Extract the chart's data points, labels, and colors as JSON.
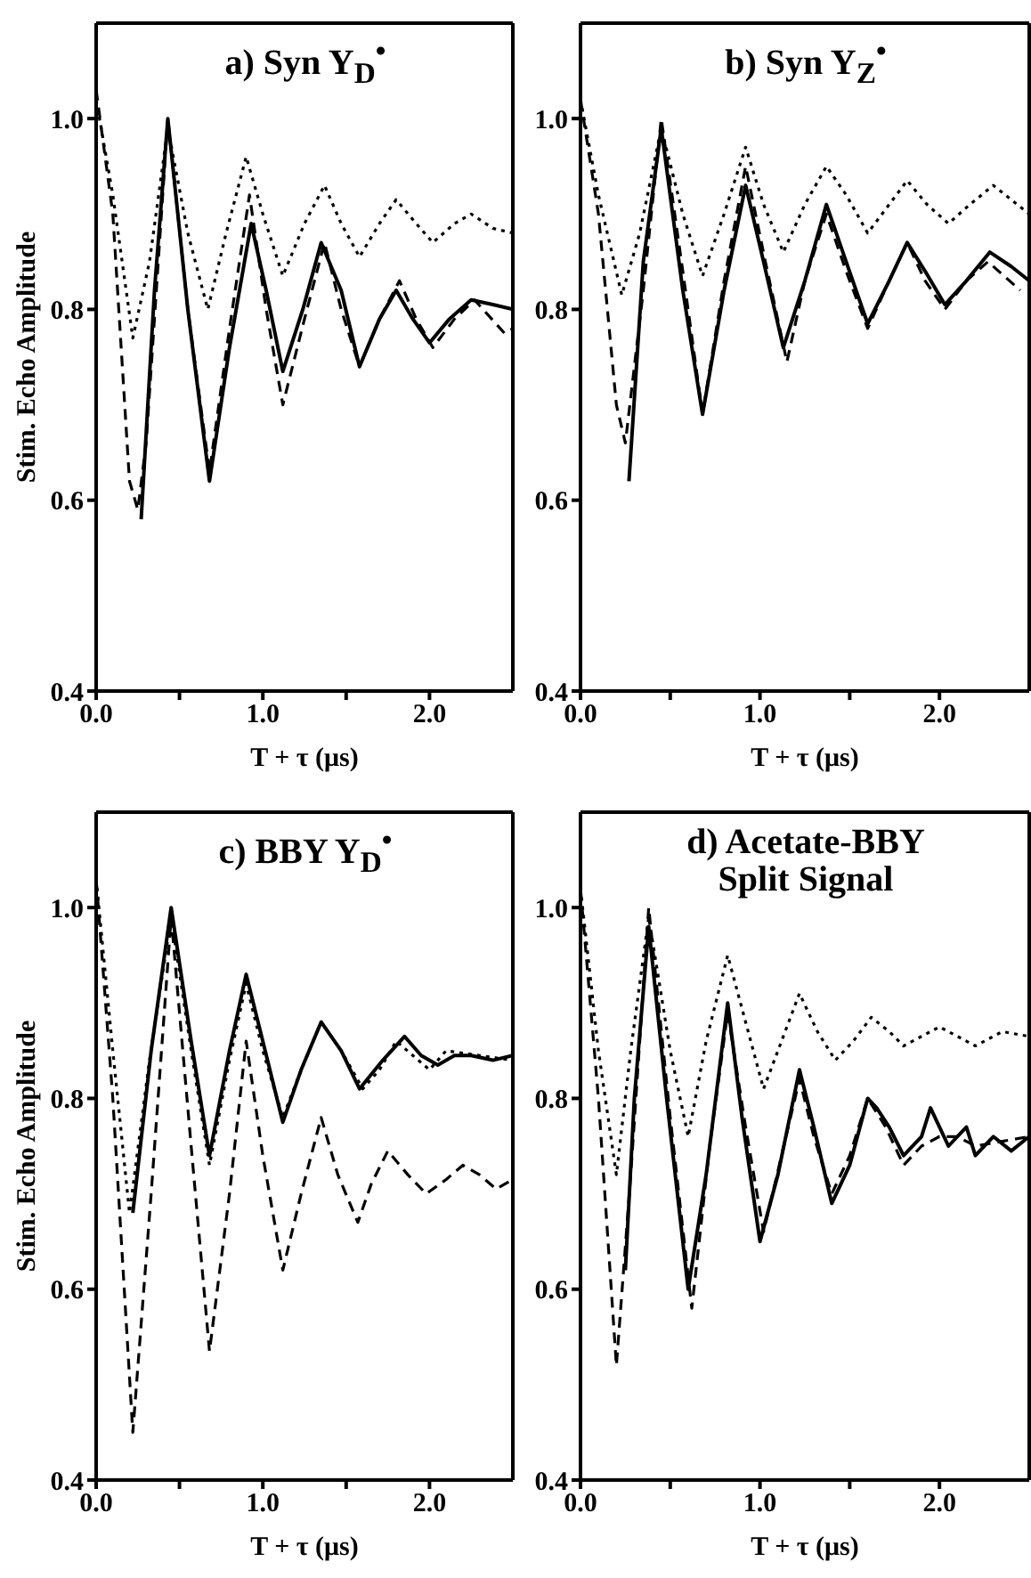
{
  "chart_data": [
    {
      "type": "line",
      "title": "a) Syn  Y$_{D}$$^{•}$",
      "xlabel": "T + τ (μs)",
      "ylabel": "Stim. Echo Amplitude",
      "xlim": [
        0,
        2.5
      ],
      "ylim": [
        0.4,
        1.1
      ],
      "xticks": [
        {
          "value": 0,
          "label": "0.0"
        },
        {
          "value": 0.5,
          "label": null
        },
        {
          "value": 1,
          "label": "1.0"
        },
        {
          "value": 1.5,
          "label": null
        },
        {
          "value": 2,
          "label": "2.0"
        }
      ],
      "yticks": [
        {
          "value": 0.4,
          "label": "0.4"
        },
        {
          "value": 0.6,
          "label": "0.6"
        },
        {
          "value": 0.8,
          "label": "0.8"
        },
        {
          "value": 1,
          "label": "1.0"
        }
      ],
      "grid": false,
      "legend": false,
      "marker": "none",
      "series": [
        {
          "color": "#000000",
          "line_style": "solid",
          "x": [
            0.27,
            0.35,
            0.43,
            0.55,
            0.68,
            0.8,
            0.93,
            1.02,
            1.12,
            1.24,
            1.35,
            1.47,
            1.58,
            1.7,
            1.8,
            1.9,
            2.0,
            2.12,
            2.25,
            2.38,
            2.5
          ],
          "values": [
            0.58,
            0.82,
            1.0,
            0.8,
            0.62,
            0.76,
            0.89,
            0.82,
            0.735,
            0.8,
            0.87,
            0.82,
            0.74,
            0.79,
            0.82,
            0.79,
            0.765,
            0.79,
            0.81,
            0.805,
            0.8
          ]
        },
        {
          "color": "#000000",
          "line_style": "dashed",
          "x": [
            0,
            0.1,
            0.2,
            0.25,
            0.3,
            0.43,
            0.55,
            0.68,
            0.8,
            0.92,
            1.02,
            1.12,
            1.25,
            1.37,
            1.47,
            1.58,
            1.7,
            1.82,
            1.92,
            2.02,
            2.15,
            2.27,
            2.45,
            2.5
          ],
          "values": [
            1.03,
            0.9,
            0.62,
            0.59,
            0.66,
            1.0,
            0.8,
            0.63,
            0.78,
            0.92,
            0.8,
            0.7,
            0.79,
            0.87,
            0.8,
            0.74,
            0.79,
            0.83,
            0.79,
            0.76,
            0.79,
            0.81,
            0.775,
            0.78
          ]
        },
        {
          "color": "#000000",
          "line_style": "dotted",
          "x": [
            0,
            0.1,
            0.22,
            0.32,
            0.43,
            0.55,
            0.67,
            0.78,
            0.9,
            1.0,
            1.12,
            1.25,
            1.37,
            1.47,
            1.58,
            1.7,
            1.8,
            1.92,
            2.02,
            2.15,
            2.25,
            2.38,
            2.5
          ],
          "values": [
            1.02,
            0.92,
            0.77,
            0.85,
            0.99,
            0.88,
            0.8,
            0.88,
            0.96,
            0.9,
            0.835,
            0.89,
            0.93,
            0.89,
            0.855,
            0.89,
            0.915,
            0.89,
            0.87,
            0.89,
            0.9,
            0.885,
            0.88
          ]
        }
      ]
    },
    {
      "type": "line",
      "title": "b) Syn  Y$_{Z}$$^{•}$",
      "xlabel": "T + τ (μs)",
      "xlim": [
        0,
        2.5
      ],
      "ylim": [
        0.4,
        1.1
      ],
      "xticks": [
        {
          "value": 0,
          "label": "0.0"
        },
        {
          "value": 0.5,
          "label": null
        },
        {
          "value": 1,
          "label": "1.0"
        },
        {
          "value": 1.5,
          "label": null
        },
        {
          "value": 2,
          "label": "2.0"
        }
      ],
      "yticks": [
        {
          "value": 0.4,
          "label": "0.4"
        },
        {
          "value": 0.6,
          "label": "0.6"
        },
        {
          "value": 0.8,
          "label": "0.8"
        },
        {
          "value": 1,
          "label": "1.0"
        }
      ],
      "grid": false,
      "legend": false,
      "marker": "none",
      "series": [
        {
          "color": "#000000",
          "line_style": "solid",
          "x": [
            0.27,
            0.35,
            0.45,
            0.57,
            0.68,
            0.8,
            0.92,
            1.02,
            1.13,
            1.25,
            1.37,
            1.48,
            1.6,
            1.72,
            1.82,
            1.92,
            2.03,
            2.15,
            2.28,
            2.4,
            2.5
          ],
          "values": [
            0.62,
            0.85,
            0.99,
            0.82,
            0.69,
            0.82,
            0.93,
            0.85,
            0.76,
            0.83,
            0.91,
            0.85,
            0.785,
            0.83,
            0.87,
            0.84,
            0.805,
            0.83,
            0.86,
            0.845,
            0.83
          ]
        },
        {
          "color": "#000000",
          "line_style": "dashed",
          "x": [
            0,
            0.1,
            0.2,
            0.25,
            0.35,
            0.45,
            0.57,
            0.68,
            0.8,
            0.92,
            1.03,
            1.15,
            1.25,
            1.37,
            1.48,
            1.6,
            1.72,
            1.82,
            1.92,
            2.03,
            2.15,
            2.27,
            2.45
          ],
          "values": [
            1.02,
            0.9,
            0.7,
            0.66,
            0.82,
            1.0,
            0.84,
            0.69,
            0.83,
            0.95,
            0.85,
            0.745,
            0.83,
            0.9,
            0.84,
            0.78,
            0.83,
            0.87,
            0.83,
            0.8,
            0.83,
            0.85,
            0.82
          ]
        },
        {
          "color": "#000000",
          "line_style": "dotted",
          "x": [
            0,
            0.1,
            0.23,
            0.33,
            0.45,
            0.57,
            0.68,
            0.8,
            0.92,
            1.02,
            1.13,
            1.25,
            1.37,
            1.48,
            1.6,
            1.72,
            1.82,
            1.93,
            2.05,
            2.17,
            2.3,
            2.4,
            2.5
          ],
          "values": [
            1.02,
            0.92,
            0.815,
            0.88,
            0.99,
            0.9,
            0.835,
            0.9,
            0.97,
            0.91,
            0.86,
            0.91,
            0.95,
            0.92,
            0.88,
            0.91,
            0.935,
            0.91,
            0.89,
            0.91,
            0.93,
            0.915,
            0.9
          ]
        }
      ]
    },
    {
      "type": "line",
      "title": "c)  BBY  Y$_{D}$$^{•}$",
      "xlabel": "T + τ (μs)",
      "ylabel": "Stim. Echo Amplitude",
      "xlim": [
        0,
        2.5
      ],
      "ylim": [
        0.4,
        1.1
      ],
      "xticks": [
        {
          "value": 0,
          "label": "0.0"
        },
        {
          "value": 0.5,
          "label": null
        },
        {
          "value": 1,
          "label": "1.0"
        },
        {
          "value": 1.5,
          "label": null
        },
        {
          "value": 2,
          "label": "2.0"
        }
      ],
      "yticks": [
        {
          "value": 0.4,
          "label": "0.4"
        },
        {
          "value": 0.6,
          "label": "0.6"
        },
        {
          "value": 0.8,
          "label": "0.8"
        },
        {
          "value": 1,
          "label": "1.0"
        }
      ],
      "grid": false,
      "legend": false,
      "marker": "none",
      "series": [
        {
          "color": "#000000",
          "line_style": "solid",
          "x": [
            0.22,
            0.33,
            0.45,
            0.57,
            0.68,
            0.8,
            0.9,
            1.0,
            1.12,
            1.23,
            1.35,
            1.47,
            1.58,
            1.72,
            1.85,
            1.95,
            2.05,
            2.15,
            2.25,
            2.38,
            2.5
          ],
          "values": [
            0.68,
            0.85,
            1.0,
            0.86,
            0.74,
            0.85,
            0.93,
            0.86,
            0.775,
            0.83,
            0.88,
            0.85,
            0.81,
            0.84,
            0.865,
            0.845,
            0.835,
            0.845,
            0.845,
            0.84,
            0.845
          ]
        },
        {
          "color": "#000000",
          "line_style": "dashed",
          "x": [
            0,
            0.1,
            0.22,
            0.33,
            0.45,
            0.57,
            0.68,
            0.8,
            0.9,
            1.0,
            1.12,
            1.23,
            1.35,
            1.45,
            1.57,
            1.65,
            1.75,
            1.87,
            1.98,
            2.1,
            2.2,
            2.3,
            2.4,
            2.5
          ],
          "values": [
            1.03,
            0.8,
            0.45,
            0.7,
            0.99,
            0.75,
            0.535,
            0.7,
            0.86,
            0.74,
            0.62,
            0.7,
            0.78,
            0.72,
            0.67,
            0.71,
            0.745,
            0.72,
            0.7,
            0.715,
            0.73,
            0.72,
            0.705,
            0.715
          ]
        },
        {
          "color": "#000000",
          "line_style": "dotted",
          "x": [
            0,
            0.1,
            0.2,
            0.32,
            0.45,
            0.57,
            0.68,
            0.8,
            0.9,
            1.0,
            1.12,
            1.23,
            1.35,
            1.47,
            1.6,
            1.7,
            1.8,
            1.9,
            2.0,
            2.1,
            2.3,
            2.5
          ],
          "values": [
            1.03,
            0.85,
            0.68,
            0.84,
            0.99,
            0.85,
            0.73,
            0.84,
            0.92,
            0.85,
            0.78,
            0.83,
            0.88,
            0.85,
            0.81,
            0.83,
            0.86,
            0.845,
            0.83,
            0.85,
            0.845,
            0.84
          ]
        }
      ]
    },
    {
      "type": "line",
      "title": "d)  Acetate-BBY\nSplit Signal",
      "xlabel": "T + τ (μs)",
      "xlim": [
        0,
        2.5
      ],
      "ylim": [
        0.4,
        1.1
      ],
      "xticks": [
        {
          "value": 0,
          "label": "0.0"
        },
        {
          "value": 0.5,
          "label": null
        },
        {
          "value": 1,
          "label": "1.0"
        },
        {
          "value": 1.5,
          "label": null
        },
        {
          "value": 2,
          "label": "2.0"
        }
      ],
      "yticks": [
        {
          "value": 0.4,
          "label": "0.4"
        },
        {
          "value": 0.6,
          "label": "0.6"
        },
        {
          "value": 0.8,
          "label": "0.8"
        },
        {
          "value": 1,
          "label": "1.0"
        }
      ],
      "grid": false,
      "legend": false,
      "marker": "none",
      "series": [
        {
          "color": "#000000",
          "line_style": "solid",
          "x": [
            0.25,
            0.3,
            0.38,
            0.48,
            0.6,
            0.7,
            0.82,
            0.9,
            1.0,
            1.1,
            1.22,
            1.3,
            1.4,
            1.5,
            1.6,
            1.65,
            1.72,
            1.8,
            1.9,
            1.95,
            2.05,
            2.15,
            2.2,
            2.3,
            2.4,
            2.5
          ],
          "values": [
            0.62,
            0.8,
            0.98,
            0.8,
            0.6,
            0.72,
            0.9,
            0.78,
            0.65,
            0.72,
            0.83,
            0.77,
            0.69,
            0.73,
            0.8,
            0.79,
            0.77,
            0.74,
            0.76,
            0.79,
            0.75,
            0.77,
            0.74,
            0.76,
            0.745,
            0.76
          ]
        },
        {
          "color": "#000000",
          "line_style": "dashed",
          "x": [
            0,
            0.1,
            0.2,
            0.28,
            0.38,
            0.5,
            0.62,
            0.72,
            0.82,
            0.92,
            1.02,
            1.12,
            1.22,
            1.3,
            1.4,
            1.5,
            1.6,
            1.7,
            1.8,
            1.9,
            2.0,
            2.1,
            2.2,
            2.35,
            2.5
          ],
          "values": [
            1.02,
            0.8,
            0.52,
            0.72,
            1.0,
            0.78,
            0.58,
            0.75,
            0.89,
            0.77,
            0.66,
            0.74,
            0.82,
            0.76,
            0.7,
            0.74,
            0.8,
            0.77,
            0.73,
            0.75,
            0.76,
            0.76,
            0.75,
            0.755,
            0.76
          ]
        },
        {
          "color": "#000000",
          "line_style": "dotted",
          "x": [
            0,
            0.1,
            0.2,
            0.28,
            0.38,
            0.5,
            0.6,
            0.7,
            0.82,
            0.92,
            1.02,
            1.12,
            1.22,
            1.32,
            1.42,
            1.52,
            1.62,
            1.72,
            1.8,
            1.9,
            2.0,
            2.1,
            2.2,
            2.35,
            2.5
          ],
          "values": [
            1.02,
            0.85,
            0.72,
            0.85,
            0.99,
            0.85,
            0.76,
            0.86,
            0.95,
            0.88,
            0.81,
            0.86,
            0.91,
            0.87,
            0.84,
            0.86,
            0.885,
            0.87,
            0.855,
            0.865,
            0.875,
            0.865,
            0.855,
            0.87,
            0.865
          ]
        }
      ]
    }
  ]
}
